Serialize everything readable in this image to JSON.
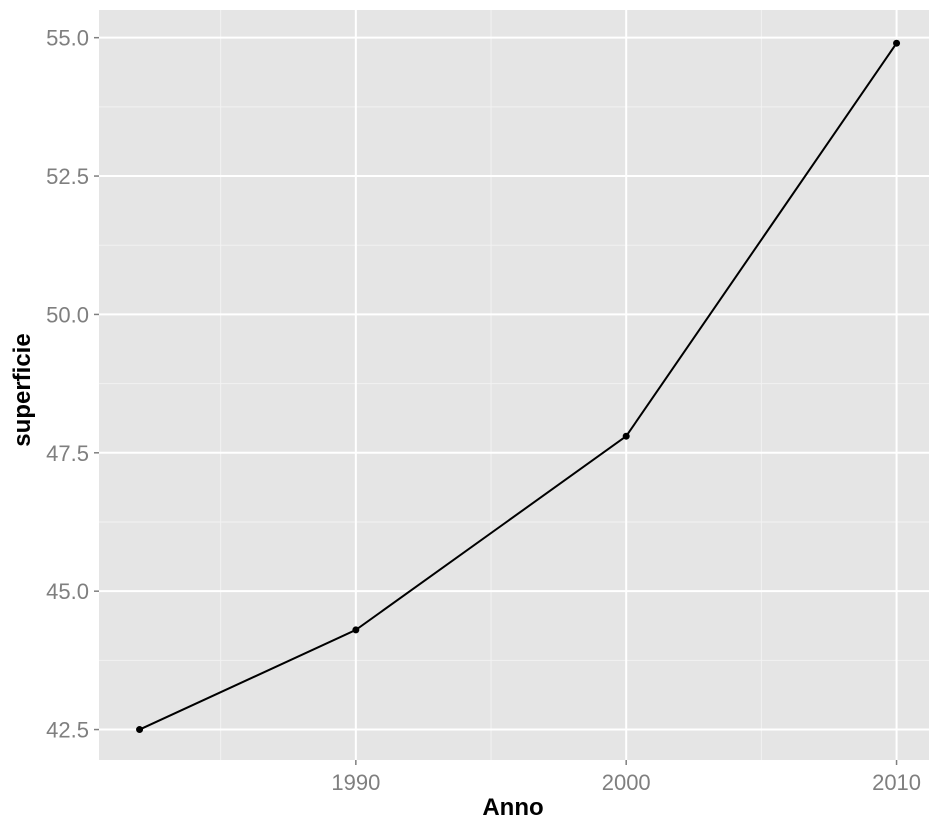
{
  "chart_data": {
    "type": "line",
    "title": "",
    "xlabel": "Anno",
    "ylabel": "superficie",
    "x": [
      1982,
      1990,
      2000,
      2010
    ],
    "series": [
      {
        "values": [
          42.5,
          44.3,
          47.8,
          54.9
        ]
      }
    ],
    "xlim": [
      1980.5,
      2011.2
    ],
    "ylim": [
      41.95,
      55.5
    ],
    "x_ticks": [
      1990,
      2000,
      2010
    ],
    "x_tick_labels": [
      "1990",
      "2000",
      "2010"
    ],
    "y_ticks": [
      42.5,
      45.0,
      47.5,
      50.0,
      52.5,
      55.0
    ],
    "y_tick_labels": [
      "42.5",
      "45.0",
      "47.5",
      "50.0",
      "52.5",
      "55.0"
    ],
    "grid": true,
    "legend": "none",
    "colors": {
      "panel": "#e5e5e5",
      "grid_major": "#ffffff",
      "grid_minor": "#f2f2f2",
      "line": "#000000",
      "tick_text": "#7f7f7f"
    }
  }
}
